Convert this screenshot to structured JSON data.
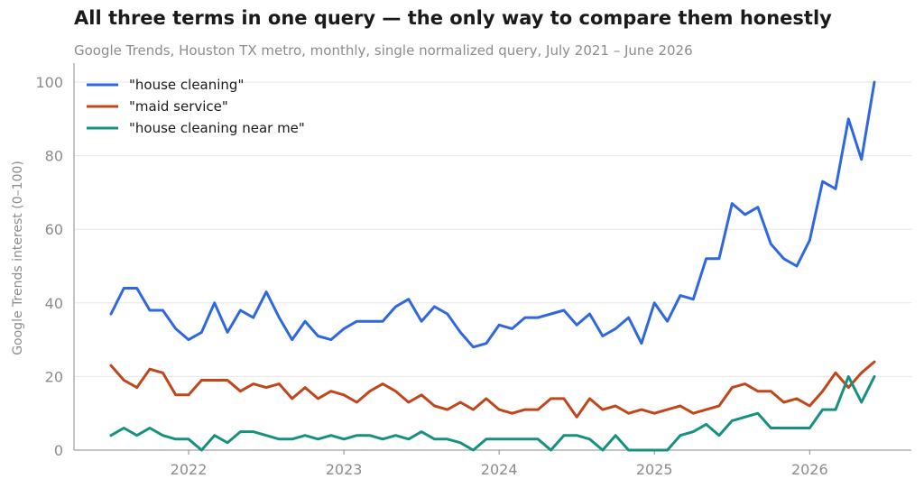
{
  "chart_data": {
    "type": "line",
    "title": "All three terms in one query — the only way to compare them honestly",
    "subtitle": "Google Trends, Houston TX metro, monthly, single normalized query, July 2021 – June 2026",
    "xlabel": "",
    "ylabel": "Google Trends interest (0–100)",
    "ylim": [
      0,
      100
    ],
    "yticks": [
      0,
      20,
      40,
      60,
      80,
      100
    ],
    "xlim": [
      "2021-07",
      "2026-06"
    ],
    "xtick_labels": [
      "2022",
      "2023",
      "2024",
      "2025",
      "2026"
    ],
    "grid": "horizontal",
    "legend_position": "top-left",
    "x": [
      "2021-07",
      "2021-08",
      "2021-09",
      "2021-10",
      "2021-11",
      "2021-12",
      "2022-01",
      "2022-02",
      "2022-03",
      "2022-04",
      "2022-05",
      "2022-06",
      "2022-07",
      "2022-08",
      "2022-09",
      "2022-10",
      "2022-11",
      "2022-12",
      "2023-01",
      "2023-02",
      "2023-03",
      "2023-04",
      "2023-05",
      "2023-06",
      "2023-07",
      "2023-08",
      "2023-09",
      "2023-10",
      "2023-11",
      "2023-12",
      "2024-01",
      "2024-02",
      "2024-03",
      "2024-04",
      "2024-05",
      "2024-06",
      "2024-07",
      "2024-08",
      "2024-09",
      "2024-10",
      "2024-11",
      "2024-12",
      "2025-01",
      "2025-02",
      "2025-03",
      "2025-04",
      "2025-05",
      "2025-06",
      "2025-07",
      "2025-08",
      "2025-09",
      "2025-10",
      "2025-11",
      "2025-12",
      "2026-01",
      "2026-02",
      "2026-03",
      "2026-04",
      "2026-05",
      "2026-06"
    ],
    "series": [
      {
        "name": "\"house cleaning\"",
        "color": "#2f67e0",
        "values": [
          37,
          44,
          44,
          38,
          38,
          33,
          30,
          32,
          40,
          32,
          38,
          36,
          43,
          36,
          30,
          35,
          31,
          30,
          33,
          35,
          35,
          35,
          39,
          41,
          35,
          39,
          37,
          32,
          28,
          29,
          34,
          33,
          36,
          36,
          37,
          38,
          34,
          37,
          31,
          33,
          36,
          29,
          40,
          35,
          42,
          41,
          52,
          52,
          67,
          64,
          66,
          56,
          52,
          50,
          57,
          73,
          71,
          90,
          79,
          100
        ]
      },
      {
        "name": "\"maid service\"",
        "color": "#c0461b",
        "values": [
          23,
          19,
          17,
          22,
          21,
          15,
          15,
          19,
          19,
          19,
          16,
          18,
          17,
          18,
          14,
          17,
          14,
          16,
          15,
          13,
          16,
          18,
          16,
          13,
          15,
          12,
          11,
          13,
          11,
          14,
          11,
          10,
          11,
          11,
          14,
          14,
          9,
          14,
          11,
          12,
          10,
          11,
          10,
          11,
          12,
          10,
          11,
          12,
          17,
          18,
          16,
          16,
          13,
          14,
          12,
          16,
          21,
          17,
          21,
          24
        ]
      },
      {
        "name": "\"house cleaning near me\"",
        "color": "#17917f",
        "values": [
          4,
          6,
          4,
          6,
          4,
          3,
          3,
          0,
          4,
          2,
          5,
          5,
          4,
          3,
          3,
          4,
          3,
          4,
          3,
          4,
          4,
          3,
          4,
          3,
          5,
          3,
          3,
          2,
          0,
          3,
          3,
          3,
          3,
          3,
          0,
          4,
          4,
          3,
          0,
          4,
          0,
          0,
          0,
          0,
          4,
          5,
          7,
          4,
          8,
          9,
          10,
          6,
          6,
          6,
          6,
          11,
          11,
          20,
          13,
          20
        ]
      }
    ]
  }
}
